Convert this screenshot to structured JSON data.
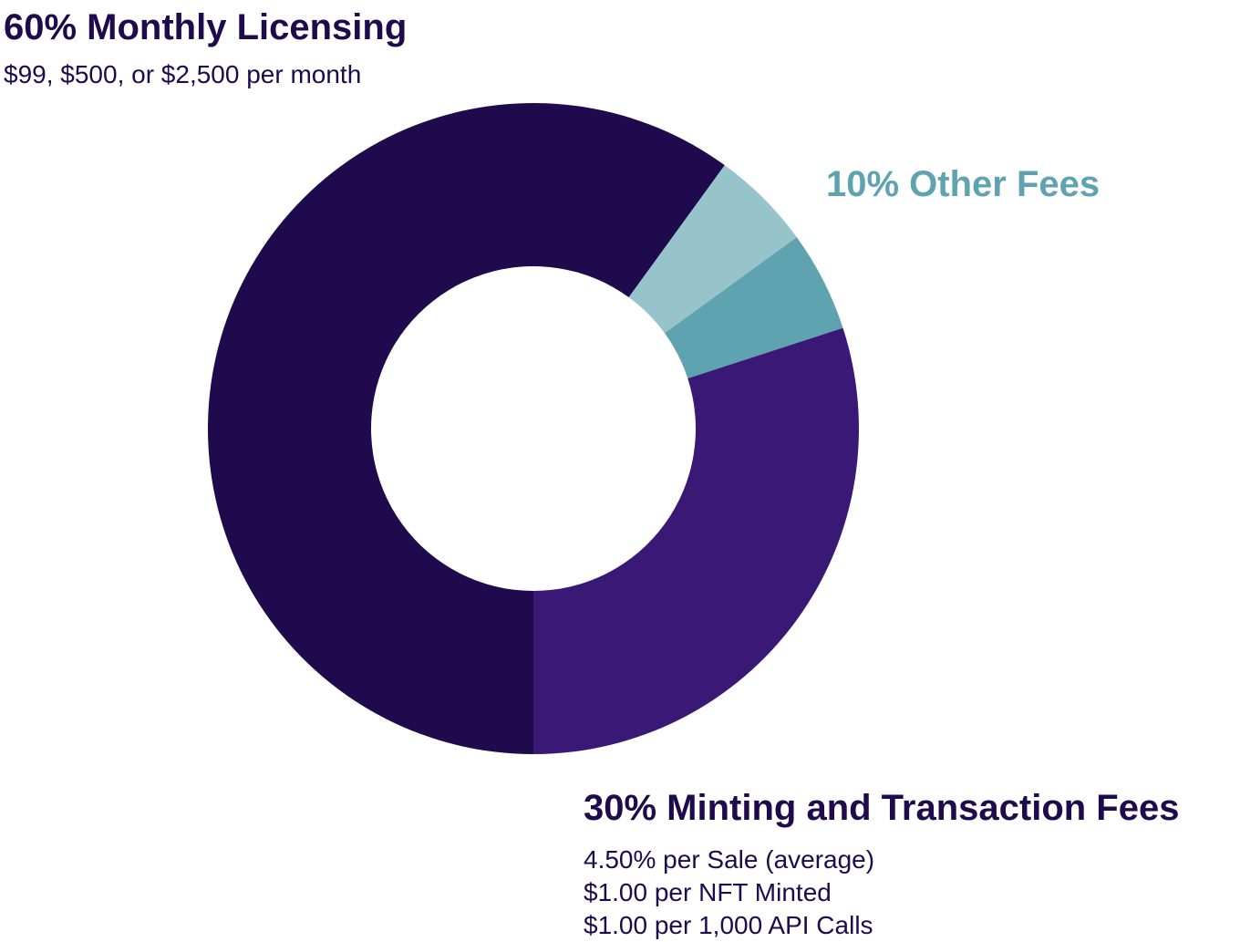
{
  "chart_data": {
    "type": "pie",
    "title": "",
    "slices": [
      {
        "label": "Monthly Licensing",
        "value": 60,
        "color": "#1e0a4c"
      },
      {
        "label": "Other Fees",
        "value": 10,
        "color": "#5fa3b0",
        "color_secondary": "#96c4ca"
      },
      {
        "label": "Minting and Transaction Fees",
        "value": 30,
        "color": "#3a1875"
      }
    ],
    "donut": true,
    "legend": "none"
  },
  "labels": {
    "licensing": {
      "title": "60% Monthly Licensing",
      "detail": "$99, $500, or $2,500 per month"
    },
    "other": {
      "title": "10% Other Fees"
    },
    "minting": {
      "title": "30% Minting and Transaction Fees",
      "details": [
        "4.50% per Sale (average)",
        "$1.00 per NFT Minted",
        "$1.00 per 1,000 API Calls"
      ]
    }
  }
}
